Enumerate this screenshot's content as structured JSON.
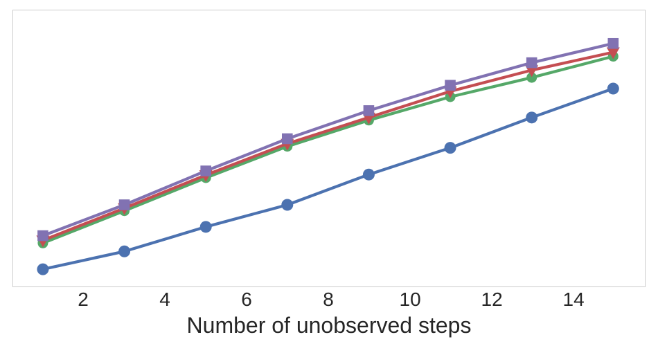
{
  "chart_data": {
    "type": "line",
    "title": "",
    "xlabel": "Number of unobserved steps",
    "ylabel": "",
    "x_ticks": [
      2,
      4,
      6,
      8,
      10,
      12,
      14
    ],
    "xlim": [
      0.27,
      15.76
    ],
    "y_axis": "unlabeled (no ticks or labels); y values below are normalized 0-1 over the plot box height",
    "ylim": [
      0,
      1
    ],
    "grid": false,
    "legend_position": "none",
    "x": [
      1,
      3,
      5,
      7,
      9,
      11,
      13,
      15
    ],
    "series": [
      {
        "name": "blue-circle-series",
        "color": "#4C72B0",
        "marker": "circle",
        "y_norm": [
          0.06,
          0.125,
          0.214,
          0.294,
          0.404,
          0.501,
          0.611,
          0.716
        ]
      },
      {
        "name": "green-circle-series",
        "color": "#55A868",
        "marker": "circle",
        "y_norm": [
          0.155,
          0.272,
          0.392,
          0.506,
          0.601,
          0.686,
          0.756,
          0.833
        ]
      },
      {
        "name": "red-triangle-series",
        "color": "#C44E52",
        "marker": "triangle-down",
        "y_norm": [
          0.165,
          0.282,
          0.402,
          0.516,
          0.611,
          0.706,
          0.783,
          0.848
        ]
      },
      {
        "name": "purple-square-series",
        "color": "#8172B2",
        "marker": "square",
        "y_norm": [
          0.182,
          0.294,
          0.417,
          0.534,
          0.636,
          0.728,
          0.81,
          0.88
        ]
      }
    ],
    "style": {
      "spine_color": "#cbcbcb",
      "text_color": "#262626",
      "background": "#ffffff",
      "line_width": 4.2
    }
  }
}
